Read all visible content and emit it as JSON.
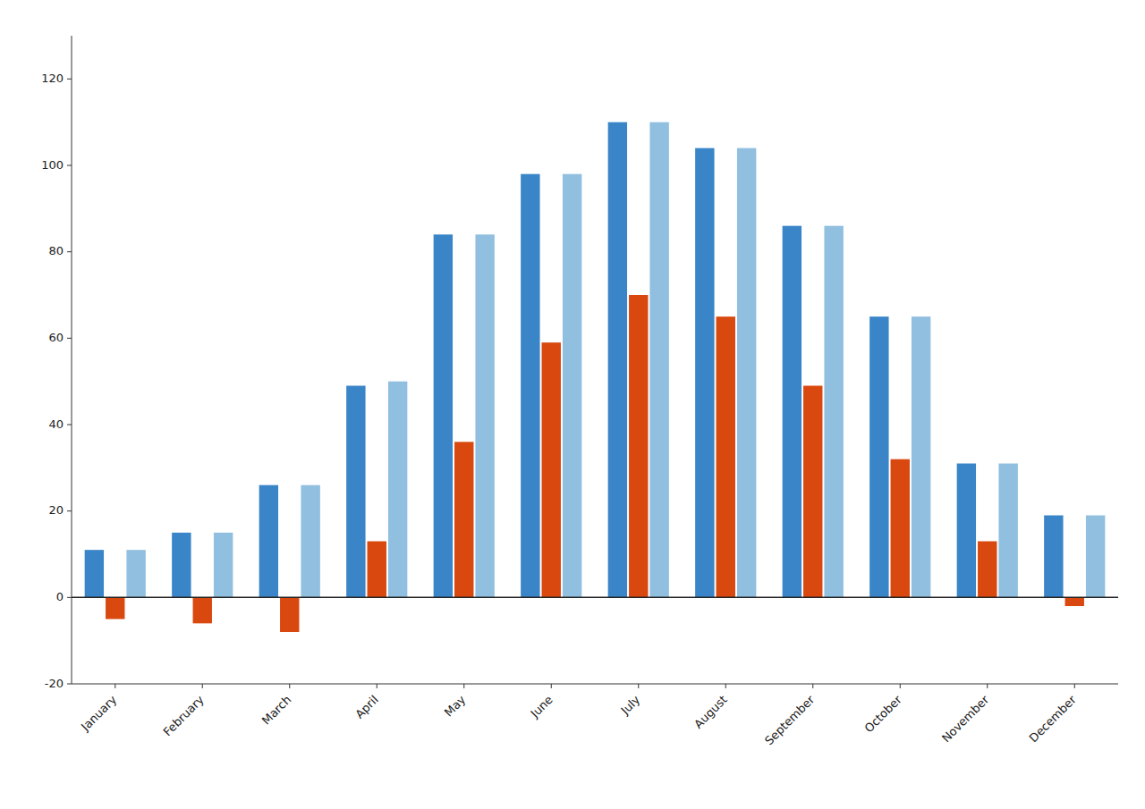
{
  "chart_data": {
    "type": "bar",
    "categories": [
      "January",
      "February",
      "March",
      "April",
      "May",
      "June",
      "July",
      "August",
      "September",
      "October",
      "November",
      "December"
    ],
    "series": [
      {
        "color": "#3A85C8",
        "values": [
          11,
          15,
          26,
          49,
          84,
          98,
          110,
          104,
          86,
          65,
          31,
          19
        ]
      },
      {
        "color": "#D9480F",
        "values": [
          -5,
          -6,
          -8,
          13,
          36,
          59,
          70,
          65,
          49,
          32,
          13,
          -2
        ]
      },
      {
        "color": "#90BFE0",
        "values": [
          11,
          15,
          26,
          50,
          84,
          98,
          110,
          104,
          86,
          65,
          31,
          19
        ]
      }
    ],
    "ylim": [
      -20,
      130
    ],
    "yticks": [
      -20,
      0,
      20,
      40,
      60,
      80,
      100,
      120
    ],
    "grid": false
  }
}
